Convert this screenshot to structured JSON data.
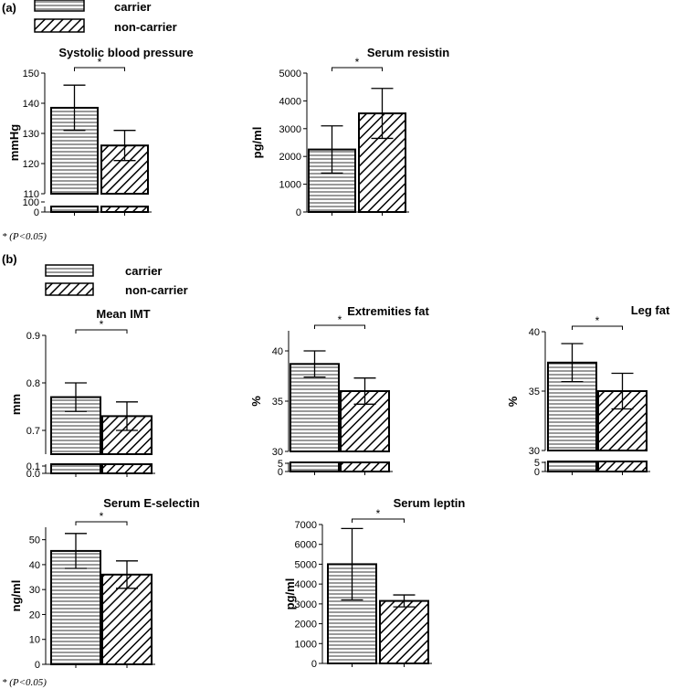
{
  "legend": {
    "carrier": "carrier",
    "noncarrier": "non-carrier"
  },
  "panel_labels": [
    "(a)",
    "(b)"
  ],
  "footnote": "* (P<0.05)",
  "chart_data": [
    {
      "id": "sbp",
      "type": "bar",
      "title": "Systolic blood pressure",
      "ylabel": "mmHg",
      "categories": [
        "carrier",
        "non-carrier"
      ],
      "series": [
        {
          "values": [
            138.5,
            126
          ]
        }
      ],
      "errors": [
        7.5,
        5
      ],
      "sig": "*",
      "yticks_main": [
        110,
        120,
        130,
        140,
        150
      ],
      "ylim": [
        110,
        150
      ],
      "yticks_break": [
        0,
        100
      ]
    },
    {
      "id": "resistin",
      "type": "bar",
      "title": "Serum resistin",
      "ylabel": "pg/ml",
      "categories": [
        "carrier",
        "non-carrier"
      ],
      "series": [
        {
          "values": [
            2250,
            3550
          ]
        }
      ],
      "errors": [
        850,
        900
      ],
      "sig": "*",
      "yticks_main": [
        0,
        1000,
        2000,
        3000,
        4000,
        5000
      ],
      "ylim": [
        0,
        5000
      ]
    },
    {
      "id": "imt",
      "type": "bar",
      "title": "Mean IMT",
      "ylabel": "mm",
      "categories": [
        "carrier",
        "non-carrier"
      ],
      "series": [
        {
          "values": [
            0.77,
            0.73
          ]
        }
      ],
      "errors": [
        0.03,
        0.03
      ],
      "sig": "*",
      "yticks_main": [
        "0.7",
        "0.8",
        "0.9"
      ],
      "ylim": [
        0.65,
        0.9
      ],
      "yticks_break": [
        "0.0",
        "0.1"
      ]
    },
    {
      "id": "extfat",
      "type": "bar",
      "title": "Extremities fat",
      "ylabel": "%",
      "categories": [
        "carrier",
        "non-carrier"
      ],
      "series": [
        {
          "values": [
            38.7,
            36
          ]
        }
      ],
      "errors": [
        1.3,
        1.3
      ],
      "sig": "*",
      "yticks_main": [
        30,
        35,
        40
      ],
      "ylim": [
        30,
        42
      ],
      "yticks_break": [
        0,
        5
      ]
    },
    {
      "id": "legfat",
      "type": "bar",
      "title": "Leg fat",
      "ylabel": "%",
      "categories": [
        "carrier",
        "non-carrier"
      ],
      "series": [
        {
          "values": [
            37.4,
            35
          ]
        }
      ],
      "errors": [
        1.6,
        1.5
      ],
      "sig": "*",
      "yticks_main": [
        30,
        35,
        40
      ],
      "ylim": [
        30,
        40
      ],
      "yticks_break": [
        0,
        5
      ]
    },
    {
      "id": "esel",
      "type": "bar",
      "title": "Serum E-selectin",
      "ylabel": "ng/ml",
      "categories": [
        "carrier",
        "non-carrier"
      ],
      "series": [
        {
          "values": [
            45.5,
            36
          ]
        }
      ],
      "errors": [
        7,
        5.5
      ],
      "sig": "*",
      "yticks_main": [
        0,
        10,
        20,
        30,
        40,
        50
      ],
      "ylim": [
        0,
        55
      ]
    },
    {
      "id": "leptin",
      "type": "bar",
      "title": "Serum leptin",
      "ylabel": "pg/ml",
      "categories": [
        "carrier",
        "non-carrier"
      ],
      "series": [
        {
          "values": [
            5000,
            3150
          ]
        }
      ],
      "errors": [
        1800,
        300
      ],
      "sig": "*",
      "yticks_main": [
        0,
        1000,
        2000,
        3000,
        4000,
        5000,
        6000,
        7000
      ],
      "ylim": [
        0,
        7000
      ]
    }
  ]
}
